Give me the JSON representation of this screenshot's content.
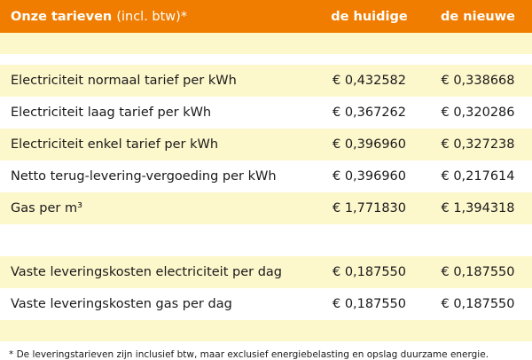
{
  "header": {
    "title": "Onze tarieven",
    "title_note": "(incl. btw)*",
    "col_current": "de huidige",
    "col_new": "de nieuwe"
  },
  "rows_energy": [
    {
      "label": "Electriciteit normaal tarief per kWh",
      "current": "€ 0,432582",
      "new": "€ 0,338668"
    },
    {
      "label": "Electriciteit laag tarief per kWh",
      "current": "€ 0,367262",
      "new": "€ 0,320286"
    },
    {
      "label": "Electriciteit enkel tarief per kWh",
      "current": "€ 0,396960",
      "new": "€ 0,327238"
    },
    {
      "label": "Netto terug-levering-vergoeding per kWh",
      "current": "€ 0,396960",
      "new": "€ 0,217614"
    },
    {
      "label": "Gas per m³",
      "current": "€ 1,771830",
      "new": "€ 1,394318"
    }
  ],
  "rows_fixed": [
    {
      "label": "Vaste leveringskosten electriciteit per dag",
      "current": "€ 0,187550",
      "new": "€ 0,187550"
    },
    {
      "label": "Vaste leveringskosten gas per dag",
      "current": "€ 0,187550",
      "new": "€ 0,187550"
    }
  ],
  "footnote": "* De leveringstarieven zijn inclusief btw, maar exclusief energiebelasting en opslag duurzame energie.",
  "colors": {
    "header": "#f07d00",
    "cream": "#fdf7cc"
  }
}
